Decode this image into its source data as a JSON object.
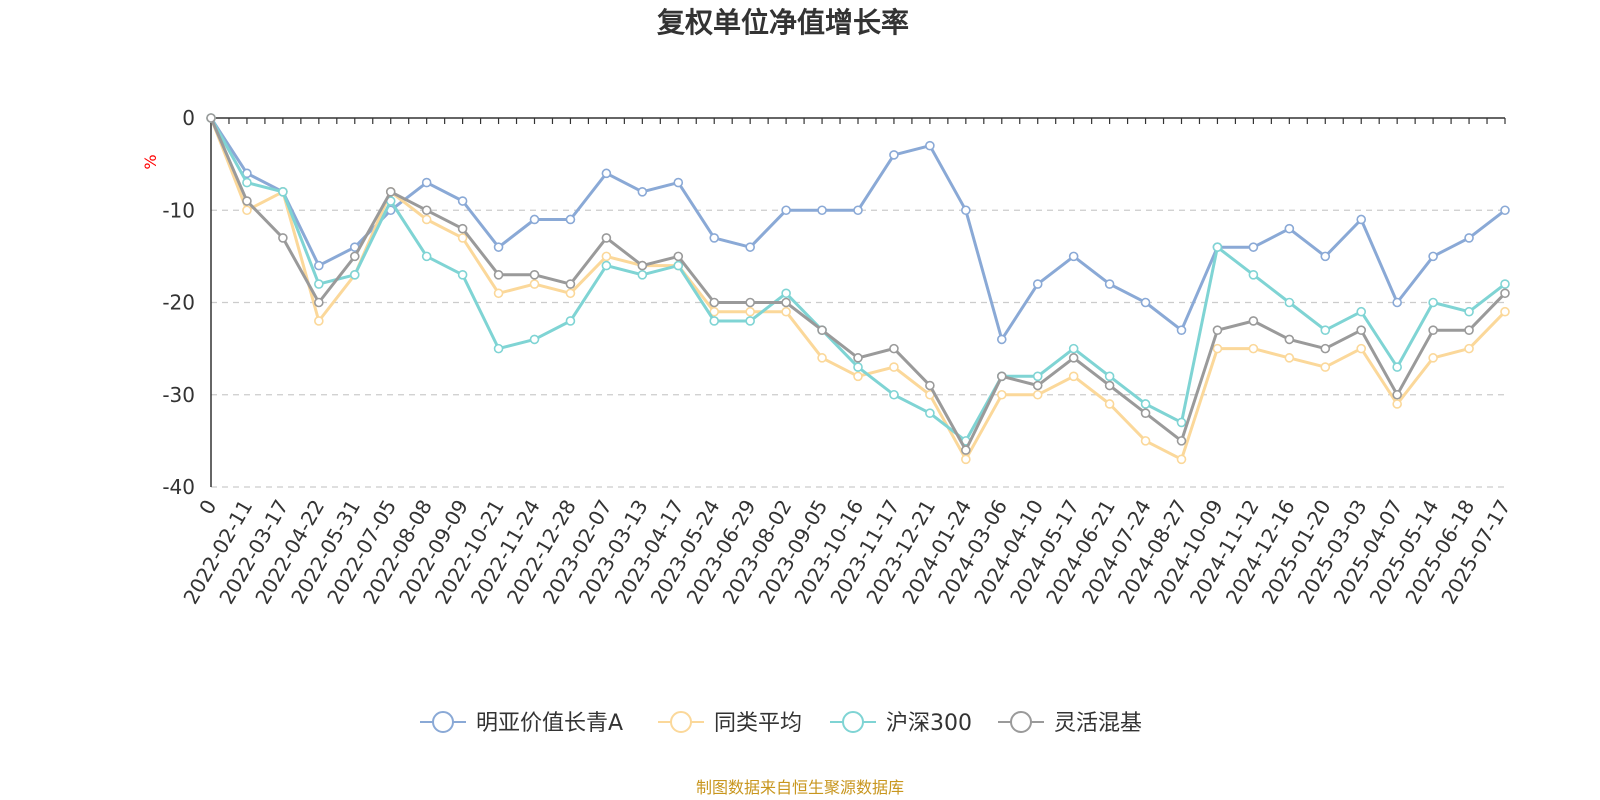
{
  "chart_data": {
    "type": "line",
    "title": "复权单位净值增长率",
    "ylabel": "%",
    "xlabel": "",
    "ylim": [
      -40,
      0
    ],
    "yticks": [
      0,
      -10,
      -20,
      -30,
      -40
    ],
    "grid": true,
    "legend_position": "bottom",
    "x": [
      "0",
      "2022-02-11",
      "2022-03-17",
      "2022-04-22",
      "2022-05-31",
      "2022-07-05",
      "2022-08-08",
      "2022-09-09",
      "2022-10-21",
      "2022-11-24",
      "2022-12-28",
      "2023-02-07",
      "2023-03-13",
      "2023-04-17",
      "2023-05-24",
      "2023-06-29",
      "2023-08-02",
      "2023-09-05",
      "2023-10-16",
      "2023-11-17",
      "2023-12-21",
      "2024-01-24",
      "2024-03-06",
      "2024-04-10",
      "2024-05-17",
      "2024-06-21",
      "2024-07-24",
      "2024-08-27",
      "2024-10-09",
      "2024-11-12",
      "2024-12-16",
      "2025-01-20",
      "2025-03-03",
      "2025-04-07",
      "2025-05-14",
      "2025-06-18",
      "2025-07-17"
    ],
    "series": [
      {
        "name": "明亚价值长青A",
        "color": "#8aa9d6",
        "values": [
          0,
          -6,
          -8,
          -16,
          -14,
          -10,
          -7,
          -9,
          -14,
          -11,
          -11,
          -6,
          -8,
          -7,
          -13,
          -14,
          -10,
          -10,
          -10,
          -4,
          -3,
          -10,
          -24,
          -18,
          -15,
          -18,
          -20,
          -23,
          -14,
          -14,
          -12,
          -15,
          -11,
          -20,
          -15,
          -13,
          -10
        ]
      },
      {
        "name": "同类平均",
        "color": "#fbd89a",
        "values": [
          0,
          -10,
          -8,
          -22,
          -17,
          -8,
          -11,
          -13,
          -19,
          -18,
          -19,
          -15,
          -16,
          -16,
          -21,
          -21,
          -21,
          -26,
          -28,
          -27,
          -30,
          -37,
          -30,
          -30,
          -28,
          -31,
          -35,
          -37,
          -25,
          -25,
          -26,
          -27,
          -25,
          -31,
          -26,
          -25,
          -21
        ]
      },
      {
        "name": "沪深300",
        "color": "#7fd4d4",
        "values": [
          0,
          -7,
          -8,
          -18,
          -17,
          -9,
          -15,
          -17,
          -25,
          -24,
          -22,
          -16,
          -17,
          -16,
          -22,
          -22,
          -19,
          -23,
          -27,
          -30,
          -32,
          -35,
          -28,
          -28,
          -25,
          -28,
          -31,
          -33,
          -14,
          -17,
          -20,
          -23,
          -21,
          -27,
          -20,
          -21,
          -18
        ]
      },
      {
        "name": "灵活混基",
        "color": "#9a9a9a",
        "values": [
          0,
          -9,
          -13,
          -20,
          -15,
          -8,
          -10,
          -12,
          -17,
          -17,
          -18,
          -13,
          -16,
          -15,
          -20,
          -20,
          -20,
          -23,
          -26,
          -25,
          -29,
          -36,
          -28,
          -29,
          -26,
          -29,
          -32,
          -35,
          -23,
          -22,
          -24,
          -25,
          -23,
          -30,
          -23,
          -23,
          -19
        ]
      }
    ]
  },
  "source_text": "制图数据来自恒生聚源数据库"
}
